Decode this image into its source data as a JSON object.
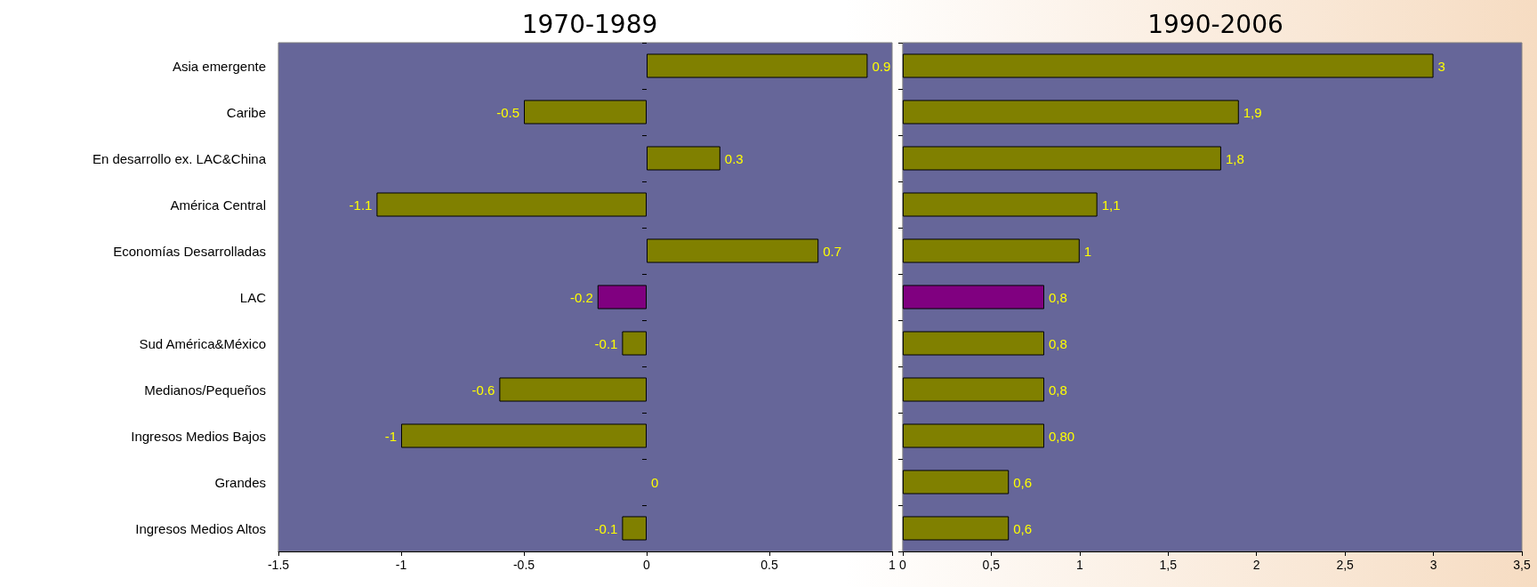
{
  "chart_data": [
    {
      "type": "bar",
      "orientation": "horizontal",
      "title": "1970-1989",
      "categories": [
        "Asia emergente",
        "Caribe",
        "En desarrollo ex. LAC&China",
        "América Central",
        "Economías Desarrolladas",
        "LAC",
        "Sud América&México",
        "Medianos/Pequeños",
        "Ingresos Medios Bajos",
        "Grandes",
        "Ingresos Medios Altos"
      ],
      "values": [
        0.9,
        -0.5,
        0.3,
        -1.1,
        0.7,
        -0.2,
        -0.1,
        -0.6,
        -1,
        0,
        -0.1
      ],
      "colors": [
        "#808000",
        "#808000",
        "#808000",
        "#808000",
        "#808000",
        "#800080",
        "#808000",
        "#808000",
        "#808000",
        "#808000",
        "#808000"
      ],
      "xlim": [
        -1.5,
        1
      ],
      "xticks": [
        -1.5,
        -1,
        -0.5,
        0,
        0.5,
        1
      ],
      "data_labels": true,
      "grid": false
    },
    {
      "type": "bar",
      "orientation": "horizontal",
      "title": "1990-2006",
      "categories": [
        null,
        null,
        null,
        null,
        null,
        null,
        null,
        null,
        null,
        null,
        null
      ],
      "values": [
        3,
        1.9,
        1.8,
        1.1,
        1,
        0.8,
        0.8,
        0.8,
        0.8,
        0.6,
        0.6
      ],
      "colors": [
        "#808000",
        "#808000",
        "#808000",
        "#808000",
        "#808000",
        "#800080",
        "#808000",
        "#808000",
        "#808000",
        "#808000",
        "#808000"
      ],
      "value_labels": [
        "3",
        "1,9",
        "1,8",
        "1,1",
        "1",
        "0,8",
        "0,8",
        "0,8",
        "0,80",
        "0,6",
        "0,6"
      ],
      "xlim": [
        0,
        3.5
      ],
      "xticks": [
        0,
        {
          "value": 0.5,
          "label": "0,5"
        },
        1,
        {
          "value": 1.5,
          "label": "1,5"
        },
        2,
        {
          "value": 2.5,
          "label": "2,5"
        },
        3,
        {
          "value": 3.5,
          "label": "3,5"
        }
      ],
      "tick_labels": "x",
      "grid": false
    }
  ]
}
